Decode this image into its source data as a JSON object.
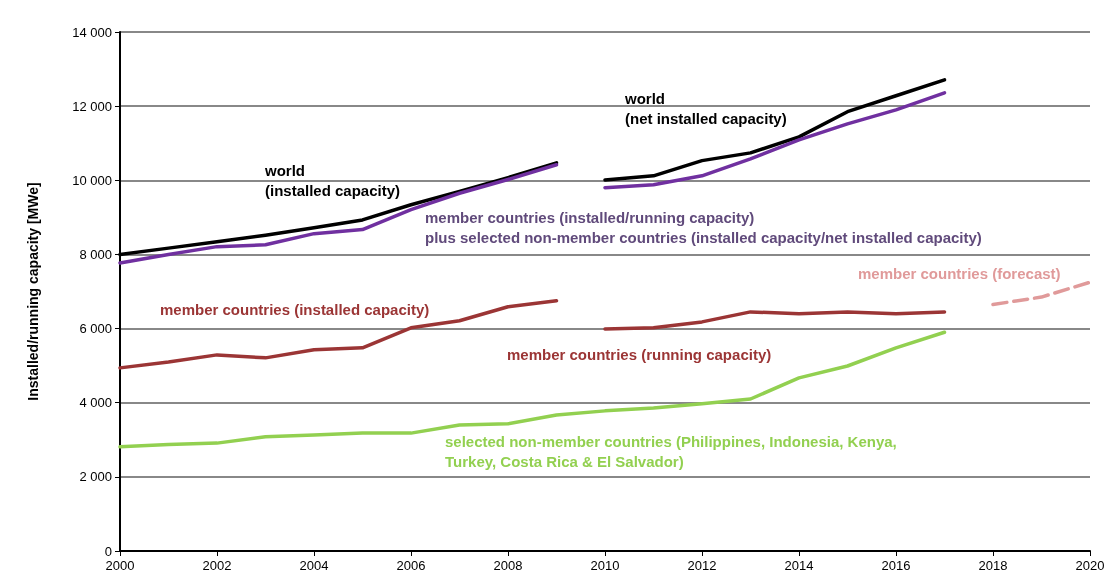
{
  "chart_data": {
    "type": "line",
    "ylabel": "Installed/running capacity [MWe]",
    "xlim": [
      2000,
      2020
    ],
    "xticks": [
      2000,
      2002,
      2004,
      2006,
      2008,
      2010,
      2012,
      2014,
      2016,
      2018,
      2020
    ],
    "ylim": [
      0,
      14000
    ],
    "yticks": [
      {
        "value": 0,
        "label": "0"
      },
      {
        "value": 2000,
        "label": "2 000"
      },
      {
        "value": 4000,
        "label": "4 000"
      },
      {
        "value": 6000,
        "label": "6 000"
      },
      {
        "value": 8000,
        "label": "8 000"
      },
      {
        "value": 10000,
        "label": "10 000"
      },
      {
        "value": 12000,
        "label": "12 000"
      },
      {
        "value": 14000,
        "label": "14 000"
      }
    ],
    "grid": "y",
    "legend": false,
    "marker": "none",
    "series": [
      {
        "name": "world\n(installed capacity)",
        "color": "#000000",
        "x": [
          2000,
          2001,
          2002,
          2003,
          2004,
          2005,
          2006,
          2007,
          2008,
          2009
        ],
        "values": [
          8000,
          8170,
          8340,
          8520,
          8720,
          8930,
          9340,
          9700,
          10070,
          10470
        ]
      },
      {
        "name": "world\n(net installed capacity)",
        "color": "#000000",
        "x": [
          2010,
          2011,
          2012,
          2013,
          2014,
          2015,
          2016,
          2017
        ],
        "values": [
          10010,
          10120,
          10530,
          10740,
          11170,
          11850,
          12280,
          12710
        ]
      },
      {
        "name": "member countries (installed/running capacity)\nplus selected non-member countries (installed capacity/net installed capacity)",
        "color": "#7030a0",
        "x": [
          2000,
          2001,
          2002,
          2003,
          2004,
          2005,
          2006,
          2007,
          2008,
          2009
        ],
        "values": [
          7770,
          8000,
          8210,
          8260,
          8560,
          8670,
          9210,
          9650,
          10020,
          10420
        ]
      },
      {
        "color": "#7030a0",
        "x": [
          2010,
          2011,
          2012,
          2013,
          2014,
          2015,
          2016,
          2017
        ],
        "values": [
          9800,
          9880,
          10120,
          10580,
          11090,
          11520,
          11900,
          12360
        ]
      },
      {
        "name": "member countries (installed capacity)",
        "color": "#9b3535",
        "x": [
          2000,
          2001,
          2002,
          2003,
          2004,
          2005,
          2006,
          2007,
          2008,
          2009
        ],
        "values": [
          4940,
          5100,
          5290,
          5210,
          5430,
          5480,
          6020,
          6210,
          6590,
          6750
        ]
      },
      {
        "name": "member countries (running capacity)",
        "color": "#9b3535",
        "x": [
          2010,
          2011,
          2012,
          2013,
          2014,
          2015,
          2016,
          2017
        ],
        "values": [
          5990,
          6020,
          6180,
          6450,
          6400,
          6450,
          6400,
          6450
        ]
      },
      {
        "name": "member countries (forecast)",
        "color": "#e09a9a",
        "line_style": "dashed",
        "x": [
          2018,
          2019,
          2020
        ],
        "values": [
          6650,
          6850,
          7250
        ]
      },
      {
        "name": "selected non-member countries (Philippines, Indonesia, Kenya,\nTurkey, Costa Rica & El Salvador)",
        "color": "#92d050",
        "x": [
          2000,
          2001,
          2002,
          2003,
          2004,
          2005,
          2006,
          2007,
          2008,
          2009,
          2010,
          2011,
          2012,
          2013,
          2014,
          2015,
          2016,
          2017
        ],
        "values": [
          2810,
          2870,
          2910,
          3080,
          3130,
          3180,
          3180,
          3400,
          3430,
          3670,
          3780,
          3860,
          3970,
          4100,
          4670,
          4990,
          5480,
          5900
        ]
      }
    ]
  }
}
